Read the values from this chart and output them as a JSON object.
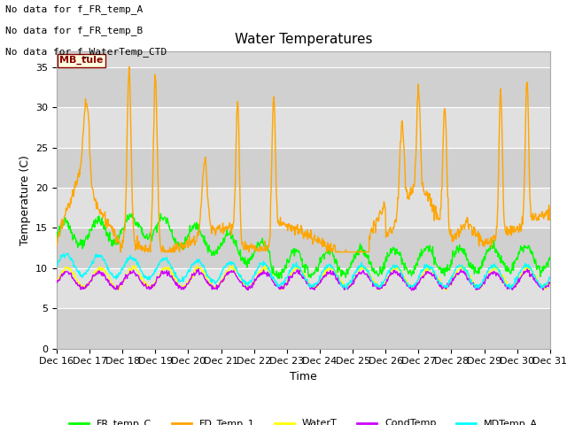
{
  "title": "Water Temperatures",
  "xlabel": "Time",
  "ylabel": "Temperature (C)",
  "ylim": [
    0,
    37
  ],
  "yticks": [
    0,
    5,
    10,
    15,
    20,
    25,
    30,
    35
  ],
  "plot_bg_color": "#d8d8d8",
  "band_colors": [
    "#c8c8c8",
    "#d8d8d8"
  ],
  "annotations": [
    "No data for f_FR_temp_A",
    "No data for f_FR_temp_B",
    "No data for f_WaterTemp_CTD"
  ],
  "mb_tule_label": "MB_tule",
  "legend_entries": [
    "FR_temp_C",
    "FD_Temp_1",
    "WaterT",
    "CondTemp",
    "MDTemp_A"
  ],
  "x_tick_labels": [
    "Dec 16",
    "Dec 17",
    "Dec 18",
    "Dec 19",
    "Dec 20",
    "Dec 21",
    "Dec 22",
    "Dec 23",
    "Dec 24",
    "Dec 25",
    "Dec 26",
    "Dec 27",
    "Dec 28",
    "Dec 29",
    "Dec 30",
    "Dec 31"
  ],
  "n_points": 960,
  "grid_color": "#ffffff",
  "line_width": 1.0,
  "colors": {
    "FR_temp_C": "#00ff00",
    "FD_Temp_1": "#ffa500",
    "WaterT": "#ffff00",
    "CondTemp": "#cc00ff",
    "MDTemp_A": "#00ffff"
  },
  "figsize": [
    6.4,
    4.8
  ],
  "dpi": 100
}
